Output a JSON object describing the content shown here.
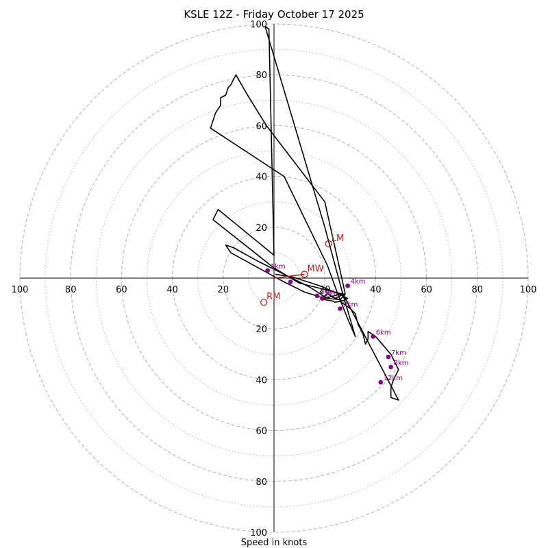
{
  "chart_data": {
    "type": "hodograph",
    "title": "KSLE 12Z - Friday October 17 2025",
    "xlabel": "Speed in knots",
    "units": "knots",
    "xlim": [
      -100,
      100
    ],
    "ylim": [
      -100,
      100
    ],
    "ring_major": [
      20,
      40,
      60,
      80,
      100
    ],
    "ring_minor": [
      10,
      30,
      50,
      70,
      90
    ],
    "x_tick_labels": [
      "100",
      "80",
      "60",
      "40",
      "20",
      "20",
      "40",
      "60",
      "80",
      "100"
    ],
    "y_tick_labels": [
      "100",
      "80",
      "60",
      "40",
      "20",
      "20",
      "40",
      "60",
      "80",
      "100"
    ],
    "colors": {
      "trace": "#000000",
      "height_marker": "#800080",
      "motion": "#b22222",
      "ring": "#b0b0b0"
    },
    "trace": [
      [
        0.5,
        1.5
      ],
      [
        7,
        0.5
      ],
      [
        18,
        -3
      ],
      [
        26,
        -6.5
      ],
      [
        29,
        -8
      ],
      [
        27,
        -9
      ],
      [
        23,
        -7.5
      ],
      [
        21,
        -6
      ],
      [
        19,
        -8
      ],
      [
        20,
        -8.5
      ],
      [
        23,
        -9
      ],
      [
        24,
        -9.5
      ],
      [
        26,
        -9.2
      ],
      [
        28,
        -10.5
      ],
      [
        30,
        -12
      ],
      [
        32,
        -14
      ],
      [
        33,
        -18
      ],
      [
        35,
        -22
      ],
      [
        36,
        -26
      ],
      [
        37,
        -24
      ],
      [
        37,
        -21
      ],
      [
        40,
        -23
      ],
      [
        46,
        -30
      ],
      [
        49,
        -36
      ],
      [
        48,
        -38
      ],
      [
        47,
        -40
      ],
      [
        46,
        -43
      ],
      [
        46,
        -47
      ],
      [
        49,
        -48
      ],
      [
        27,
        -6
      ],
      [
        20,
        -8
      ],
      [
        12,
        -5.5
      ],
      [
        3,
        -1
      ],
      [
        -17,
        10
      ],
      [
        -19,
        13
      ],
      [
        -16,
        12
      ],
      [
        -6,
        6.5
      ],
      [
        4,
        1.5
      ],
      [
        14,
        -3.5
      ],
      [
        21,
        -8
      ],
      [
        26,
        -8.5
      ],
      [
        28,
        -6.5
      ],
      [
        10,
        -2
      ],
      [
        0,
        4
      ],
      [
        -24,
        23
      ],
      [
        -22,
        27
      ],
      [
        0,
        9
      ],
      [
        -2,
        98
      ],
      [
        -3.5,
        99
      ],
      [
        20,
        20
      ],
      [
        27,
        -6
      ],
      [
        32,
        -23
      ],
      [
        29,
        -16
      ],
      [
        25,
        -6
      ],
      [
        21,
        5
      ],
      [
        4,
        40
      ],
      [
        -25,
        59
      ],
      [
        -23,
        65
      ],
      [
        -21,
        68
      ],
      [
        -21,
        71
      ],
      [
        -19,
        72
      ],
      [
        -18,
        75
      ],
      [
        -17,
        76
      ],
      [
        -16,
        78
      ],
      [
        -15,
        80
      ],
      [
        -11,
        73
      ],
      [
        -3,
        60
      ],
      [
        20,
        30
      ],
      [
        28,
        -6
      ],
      [
        24,
        -8
      ]
    ],
    "height_markers": [
      {
        "label": "1km",
        "u": -2.5,
        "v": 3
      },
      {
        "label": "",
        "u": 6.5,
        "v": -1.5
      },
      {
        "label": "2km",
        "u": 19,
        "v": -8
      },
      {
        "label": "2km",
        "u": 17,
        "v": -7
      },
      {
        "label": "3km",
        "u": 26,
        "v": -12
      },
      {
        "label": "4km",
        "u": 29,
        "v": -3
      },
      {
        "label": "6km",
        "u": 39,
        "v": -23
      },
      {
        "label": "7km",
        "u": 45,
        "v": -31
      },
      {
        "label": "8km",
        "u": 46,
        "v": -35
      },
      {
        "label": "12km",
        "u": 42,
        "v": -41
      }
    ],
    "storm_motion": [
      {
        "label": "LM",
        "u": 21.5,
        "v": 13.5
      },
      {
        "label": "MW",
        "u": 12,
        "v": 1.5
      },
      {
        "label": "RM",
        "u": -4,
        "v": -9.5
      }
    ],
    "shear_vector": {
      "from": [
        0,
        0
      ],
      "to": [
        12,
        1.5
      ]
    }
  }
}
